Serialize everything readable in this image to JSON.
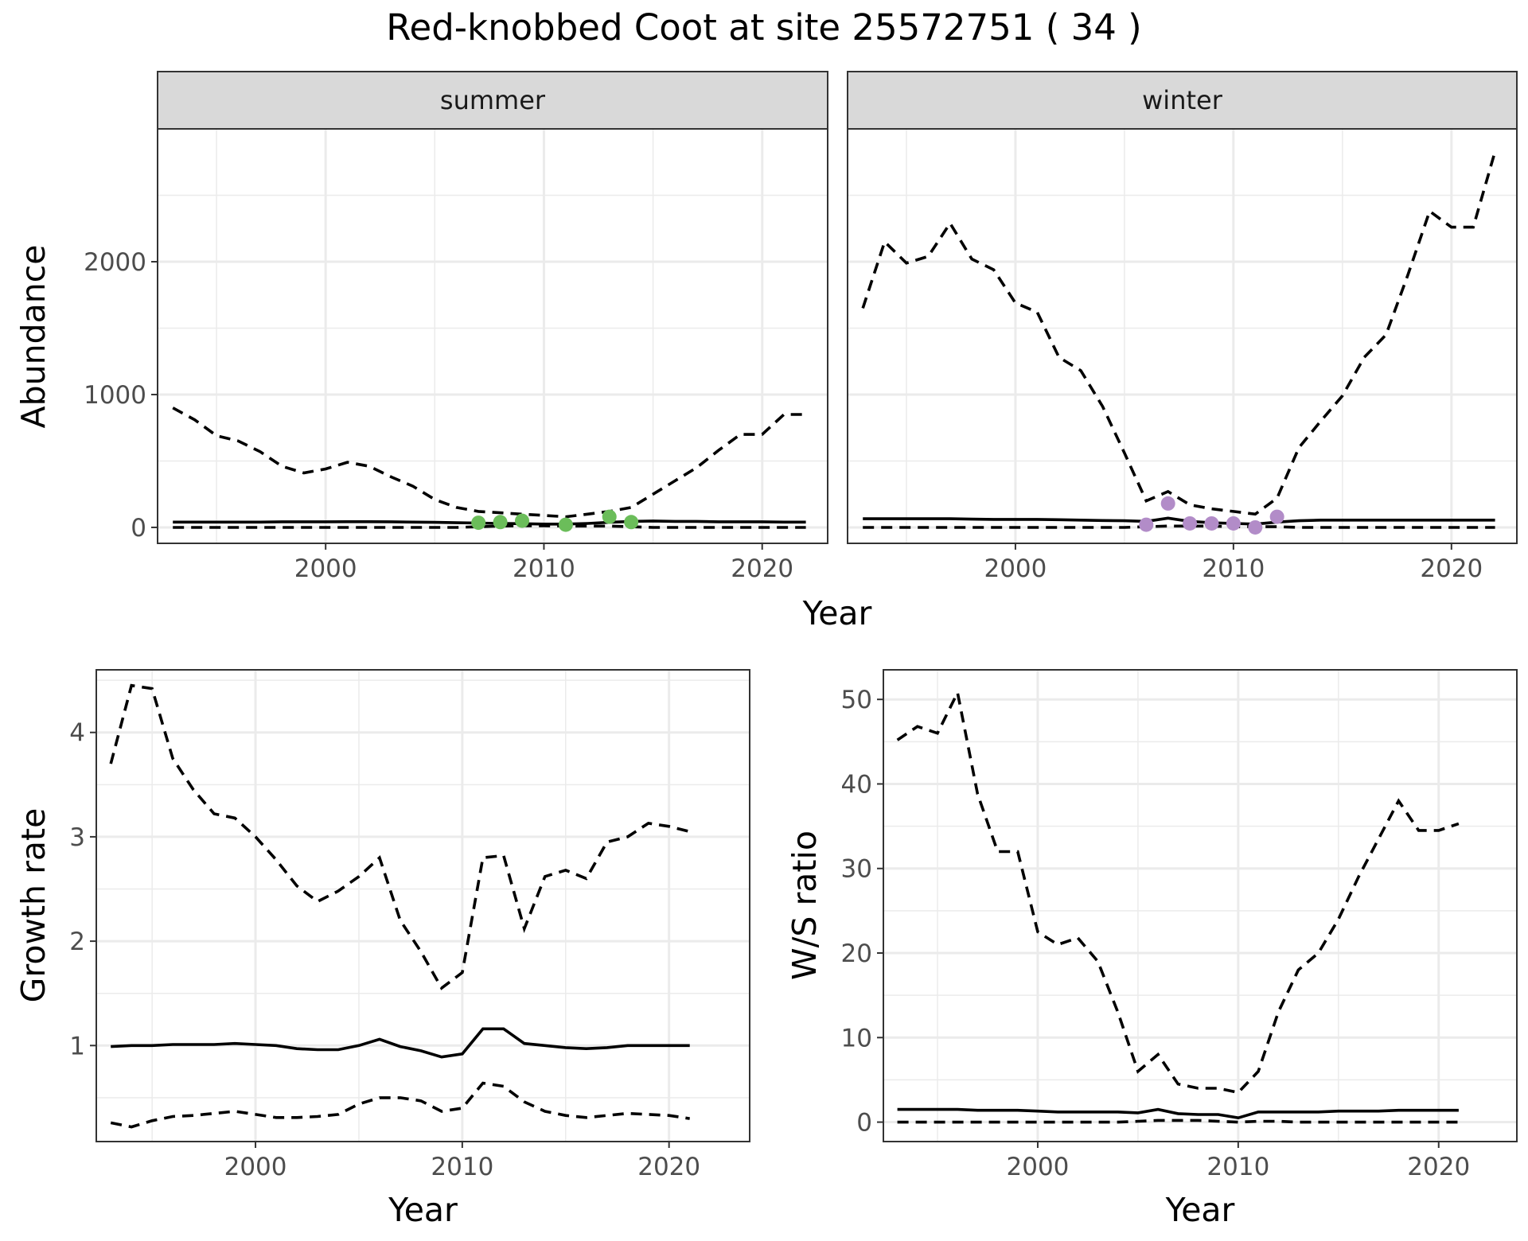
{
  "title": "Red-knobbed Coot at site 25572751 ( 34 )",
  "colors": {
    "summer_points": "#6bbd5a",
    "winter_points": "#b28cc8",
    "lines": "#000000"
  },
  "chart_data": [
    {
      "type": "line",
      "panel": "abundance",
      "facets": [
        "summer",
        "winter"
      ],
      "xlabel": "Year",
      "ylabel": "Abundance",
      "xlim": [
        1992.3,
        2023.0
      ],
      "ylim": [
        -120,
        3000
      ],
      "xticks": [
        2000,
        2010,
        2020
      ],
      "xtick_labels": [
        "2000",
        "2010",
        "2020"
      ],
      "yticks": [
        0,
        1000,
        2000
      ],
      "ytick_labels": [
        "0",
        "1000",
        "2000"
      ],
      "x": [
        1993,
        1994,
        1995,
        1996,
        1997,
        1998,
        1999,
        2000,
        2001,
        2002,
        2003,
        2004,
        2005,
        2006,
        2007,
        2008,
        2009,
        2010,
        2011,
        2012,
        2013,
        2014,
        2015,
        2016,
        2017,
        2018,
        2019,
        2020,
        2021,
        2022
      ],
      "summer": {
        "mean": [
          40,
          40,
          40,
          40,
          40,
          42,
          42,
          42,
          43,
          43,
          42,
          40,
          38,
          35,
          33,
          30,
          28,
          25,
          25,
          30,
          38,
          45,
          48,
          45,
          45,
          42,
          42,
          42,
          40,
          40
        ],
        "lower": [
          0,
          0,
          0,
          0,
          0,
          0,
          0,
          0,
          0,
          0,
          0,
          0,
          0,
          0,
          5,
          10,
          12,
          12,
          10,
          10,
          10,
          5,
          0,
          0,
          0,
          0,
          0,
          0,
          0,
          0
        ],
        "upper": [
          900,
          810,
          690,
          650,
          570,
          460,
          410,
          440,
          490,
          460,
          380,
          310,
          210,
          150,
          120,
          110,
          100,
          90,
          80,
          100,
          120,
          150,
          250,
          350,
          450,
          580,
          700,
          700,
          850,
          850
        ],
        "observed_x": [
          2007,
          2008,
          2009,
          2011,
          2013,
          2014
        ],
        "observed_y": [
          35,
          40,
          50,
          20,
          80,
          40
        ]
      },
      "winter": {
        "mean": [
          65,
          65,
          65,
          65,
          65,
          62,
          60,
          60,
          60,
          58,
          55,
          52,
          50,
          45,
          70,
          45,
          35,
          30,
          25,
          40,
          50,
          55,
          55,
          55,
          55,
          55,
          55,
          55,
          55,
          55
        ],
        "lower": [
          0,
          0,
          0,
          0,
          0,
          0,
          0,
          0,
          0,
          0,
          0,
          0,
          0,
          5,
          10,
          10,
          10,
          5,
          5,
          5,
          0,
          0,
          0,
          0,
          0,
          0,
          0,
          0,
          0,
          0
        ],
        "upper": [
          1650,
          2150,
          1990,
          2040,
          2290,
          2020,
          1940,
          1690,
          1620,
          1280,
          1180,
          910,
          560,
          200,
          270,
          170,
          140,
          120,
          100,
          220,
          600,
          800,
          990,
          1280,
          1450,
          1900,
          2380,
          2260,
          2260,
          2830
        ],
        "observed_x": [
          2006,
          2007,
          2008,
          2009,
          2010,
          2011,
          2012
        ],
        "observed_y": [
          20,
          180,
          30,
          30,
          30,
          0,
          80
        ]
      }
    },
    {
      "type": "line",
      "panel": "growth",
      "xlabel": "Year",
      "ylabel": "Growth rate",
      "xlim": [
        1992.3,
        2023.9
      ],
      "ylim": [
        0.08,
        4.6
      ],
      "xticks": [
        2000,
        2010,
        2020
      ],
      "xtick_labels": [
        "2000",
        "2010",
        "2020"
      ],
      "yticks": [
        1,
        2,
        3,
        4
      ],
      "ytick_labels": [
        "1",
        "2",
        "3",
        "4"
      ],
      "x": [
        1993,
        1994,
        1995,
        1996,
        1997,
        1998,
        1999,
        2000,
        2001,
        2002,
        2003,
        2004,
        2005,
        2006,
        2007,
        2008,
        2009,
        2010,
        2011,
        2012,
        2013,
        2014,
        2015,
        2016,
        2017,
        2018,
        2019,
        2020,
        2021
      ],
      "mean": [
        0.99,
        1.0,
        1.0,
        1.01,
        1.01,
        1.01,
        1.02,
        1.01,
        1.0,
        0.97,
        0.96,
        0.96,
        1.0,
        1.06,
        0.99,
        0.95,
        0.89,
        0.92,
        1.16,
        1.16,
        1.02,
        1.0,
        0.98,
        0.97,
        0.98,
        1.0,
        1.0,
        1.0,
        1.0
      ],
      "lower": [
        0.26,
        0.22,
        0.28,
        0.32,
        0.33,
        0.35,
        0.37,
        0.34,
        0.31,
        0.31,
        0.32,
        0.34,
        0.44,
        0.5,
        0.5,
        0.47,
        0.37,
        0.4,
        0.64,
        0.61,
        0.46,
        0.37,
        0.33,
        0.31,
        0.33,
        0.35,
        0.34,
        0.33,
        0.3
      ],
      "upper": [
        3.7,
        4.45,
        4.42,
        3.75,
        3.45,
        3.22,
        3.18,
        3.0,
        2.78,
        2.53,
        2.38,
        2.48,
        2.62,
        2.8,
        2.2,
        1.9,
        1.55,
        1.7,
        2.8,
        2.82,
        2.12,
        2.62,
        2.68,
        2.6,
        2.95,
        3.0,
        3.13,
        3.1,
        3.05
      ]
    },
    {
      "type": "line",
      "panel": "ratio",
      "xlabel": "Year",
      "ylabel": "W/S ratio",
      "xlim": [
        1992.3,
        2023.9
      ],
      "ylim": [
        -2.3,
        53.5
      ],
      "xticks": [
        2000,
        2010,
        2020
      ],
      "xtick_labels": [
        "2000",
        "2010",
        "2020"
      ],
      "yticks": [
        0,
        10,
        20,
        30,
        40,
        50
      ],
      "ytick_labels": [
        "0",
        "10",
        "20",
        "30",
        "40",
        "50"
      ],
      "x": [
        1993,
        1994,
        1995,
        1996,
        1997,
        1998,
        1999,
        2000,
        2001,
        2002,
        2003,
        2004,
        2005,
        2006,
        2007,
        2008,
        2009,
        2010,
        2011,
        2012,
        2013,
        2014,
        2015,
        2016,
        2017,
        2018,
        2019,
        2020,
        2021
      ],
      "mean": [
        1.5,
        1.5,
        1.5,
        1.5,
        1.4,
        1.4,
        1.4,
        1.3,
        1.2,
        1.2,
        1.2,
        1.2,
        1.1,
        1.5,
        1.0,
        0.9,
        0.9,
        0.5,
        1.2,
        1.2,
        1.2,
        1.2,
        1.3,
        1.3,
        1.3,
        1.4,
        1.4,
        1.4,
        1.4
      ],
      "lower": [
        0,
        0,
        0,
        0,
        0,
        0,
        0,
        0,
        0,
        0,
        0,
        0,
        0.1,
        0.2,
        0.2,
        0.2,
        0.1,
        0.0,
        0.1,
        0.1,
        0.0,
        0,
        0,
        0,
        0,
        0,
        0,
        0,
        0
      ],
      "upper": [
        45.2,
        46.8,
        46.0,
        50.8,
        38.8,
        32.0,
        32.0,
        22.5,
        21.0,
        21.8,
        19.0,
        13.0,
        6.0,
        8.0,
        4.5,
        4.0,
        4.0,
        3.5,
        6.0,
        13.0,
        18.0,
        20.0,
        24.0,
        29.0,
        33.5,
        38.0,
        34.5,
        34.5,
        35.3
      ]
    }
  ]
}
